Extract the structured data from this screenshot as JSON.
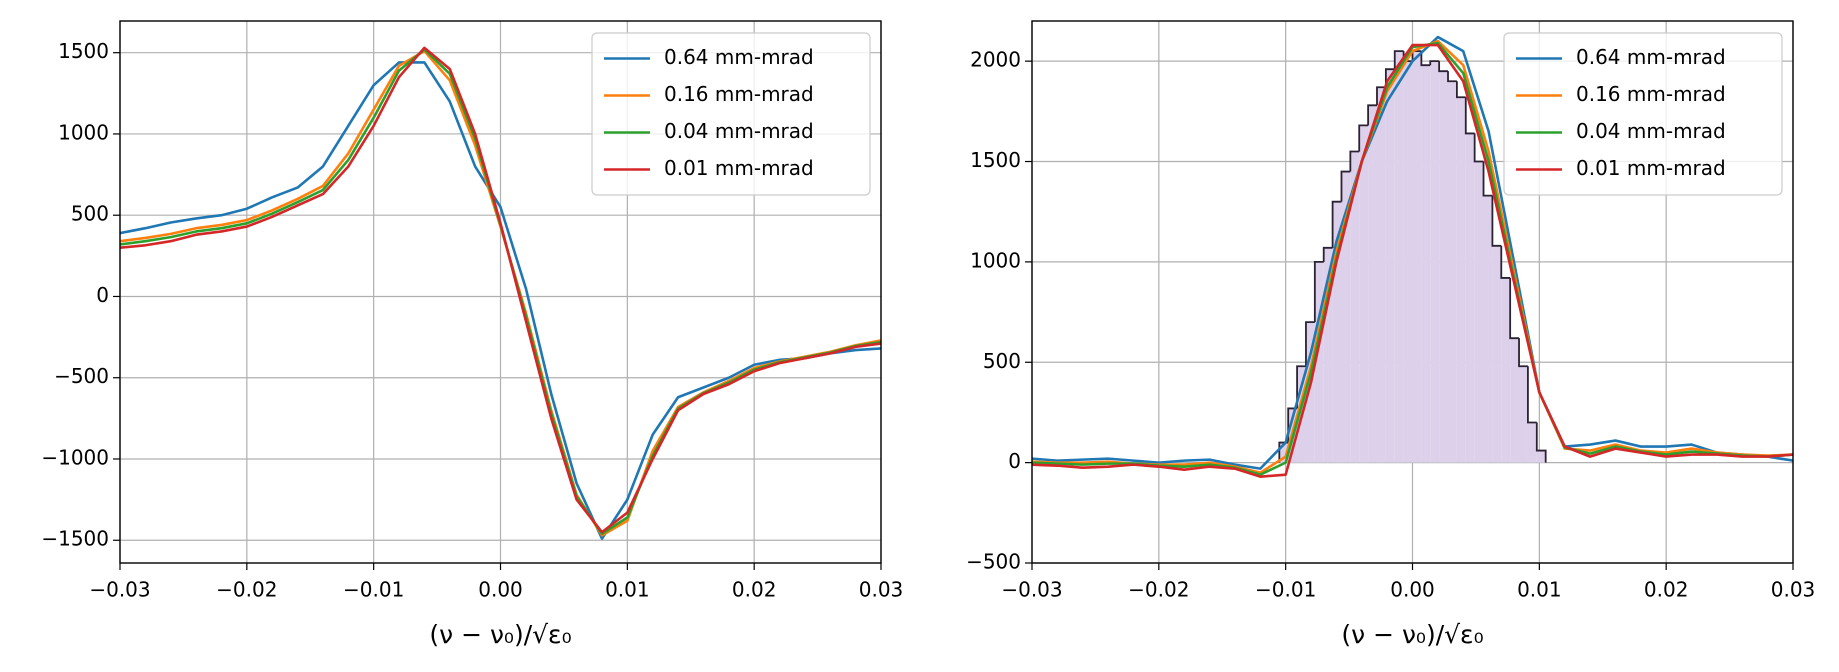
{
  "chart_data": [
    {
      "type": "line",
      "xlabel": "(ν − ν₀)/√ε₀",
      "x": [
        -0.03,
        -0.028,
        -0.026,
        -0.024,
        -0.022,
        -0.02,
        -0.018,
        -0.016,
        -0.014,
        -0.012,
        -0.01,
        -0.008,
        -0.006,
        -0.004,
        -0.002,
        0,
        0.002,
        0.004,
        0.006,
        0.008,
        0.01,
        0.012,
        0.014,
        0.016,
        0.018,
        0.02,
        0.022,
        0.024,
        0.026,
        0.028,
        0.03
      ],
      "series": [
        {
          "name": "0.64 mm-mrad",
          "color": "#1f77b4",
          "values": [
            390,
            420,
            455,
            480,
            500,
            540,
            610,
            670,
            800,
            1050,
            1300,
            1440,
            1440,
            1200,
            800,
            550,
            50,
            -600,
            -1150,
            -1490,
            -1250,
            -850,
            -620,
            -560,
            -500,
            -420,
            -390,
            -380,
            -350,
            -330,
            -320
          ]
        },
        {
          "name": "0.16 mm-mrad",
          "color": "#ff7f0e",
          "values": [
            340,
            360,
            385,
            420,
            440,
            470,
            530,
            600,
            680,
            880,
            1150,
            1420,
            1510,
            1330,
            930,
            430,
            -100,
            -700,
            -1220,
            -1470,
            -1380,
            -950,
            -680,
            -590,
            -520,
            -440,
            -400,
            -370,
            -340,
            -300,
            -270
          ]
        },
        {
          "name": "0.04 mm-mrad",
          "color": "#2ca02c",
          "values": [
            320,
            340,
            365,
            400,
            420,
            450,
            510,
            580,
            655,
            840,
            1100,
            1390,
            1520,
            1370,
            970,
            440,
            -120,
            -720,
            -1230,
            -1460,
            -1360,
            -980,
            -690,
            -595,
            -530,
            -450,
            -405,
            -375,
            -345,
            -305,
            -280
          ]
        },
        {
          "name": "0.01 mm-mrad",
          "color": "#d62728",
          "values": [
            300,
            315,
            340,
            380,
            400,
            430,
            490,
            560,
            630,
            800,
            1050,
            1350,
            1530,
            1400,
            1000,
            450,
            -150,
            -750,
            -1250,
            -1450,
            -1330,
            -1000,
            -700,
            -600,
            -540,
            -460,
            -410,
            -380,
            -350,
            -310,
            -290
          ]
        }
      ],
      "xlim": [
        -0.03,
        0.03
      ],
      "ylim": [
        -1640,
        1695
      ],
      "xticks": [
        {
          "value": -0.03,
          "label": "−0.03"
        },
        {
          "value": -0.02,
          "label": "−0.02"
        },
        {
          "value": -0.01,
          "label": "−0.01"
        },
        {
          "value": 0,
          "label": "0.00"
        },
        0.01,
        0.02,
        0.03
      ],
      "yticks": [
        {
          "value": -1500,
          "label": "−1500"
        },
        {
          "value": -1000,
          "label": "−1000"
        },
        {
          "value": -500,
          "label": "−500"
        },
        0,
        500,
        1000,
        1500
      ],
      "grid": true,
      "legend": "upper right"
    },
    {
      "type": "line",
      "xlabel": "(ν − ν₀)/√ε₀",
      "x": [
        -0.03,
        -0.028,
        -0.026,
        -0.024,
        -0.022,
        -0.02,
        -0.018,
        -0.016,
        -0.014,
        -0.012,
        -0.01,
        -0.008,
        -0.006,
        -0.004,
        -0.002,
        0,
        0.002,
        0.004,
        0.006,
        0.008,
        0.01,
        0.012,
        0.014,
        0.016,
        0.018,
        0.02,
        0.022,
        0.024,
        0.026,
        0.028,
        0.03
      ],
      "series": [
        {
          "name": "0.64 mm-mrad",
          "color": "#1f77b4",
          "values": [
            20,
            10,
            15,
            20,
            10,
            0,
            10,
            15,
            -10,
            -30,
            100,
            550,
            1100,
            1500,
            1800,
            2000,
            2120,
            2050,
            1650,
            1000,
            350,
            80,
            90,
            110,
            80,
            80,
            90,
            50,
            40,
            30,
            10
          ]
        },
        {
          "name": "0.16 mm-mrad",
          "color": "#ff7f0e",
          "values": [
            5,
            0,
            0,
            5,
            -5,
            -10,
            -10,
            0,
            -20,
            -50,
            30,
            480,
            1050,
            1500,
            1850,
            2050,
            2100,
            1980,
            1550,
            950,
            350,
            70,
            60,
            90,
            60,
            50,
            70,
            50,
            40,
            35,
            40
          ]
        },
        {
          "name": "0.04 mm-mrad",
          "color": "#2ca02c",
          "values": [
            0,
            -5,
            -10,
            -5,
            -5,
            -15,
            -20,
            -10,
            -25,
            -60,
            0,
            450,
            1020,
            1500,
            1870,
            2070,
            2090,
            1940,
            1500,
            920,
            350,
            75,
            45,
            80,
            55,
            40,
            55,
            45,
            35,
            30,
            40
          ]
        },
        {
          "name": "0.01 mm-mrad",
          "color": "#d62728",
          "values": [
            -10,
            -15,
            -25,
            -20,
            -10,
            -20,
            -35,
            -20,
            -30,
            -70,
            -60,
            400,
            1000,
            1500,
            1900,
            2080,
            2080,
            1900,
            1450,
            900,
            350,
            80,
            30,
            70,
            50,
            30,
            40,
            40,
            30,
            30,
            40
          ]
        }
      ],
      "histogram": {
        "color": "#dcd0ea",
        "edgecolor": "#2b2233",
        "bins": [
          -0.0105,
          -0.0098,
          -0.0091,
          -0.0084,
          -0.0077,
          -0.007,
          -0.0063,
          -0.0056,
          -0.0049,
          -0.0042,
          -0.0035,
          -0.0028,
          -0.0021,
          -0.0014,
          -0.0007,
          0,
          0.0007,
          0.0014,
          0.0021,
          0.0028,
          0.0035,
          0.0042,
          0.0049,
          0.0056,
          0.0063,
          0.007,
          0.0077,
          0.0084,
          0.0091,
          0.0098,
          0.0105
        ],
        "counts": [
          100,
          270,
          480,
          700,
          1000,
          1070,
          1300,
          1450,
          1550,
          1680,
          1780,
          1870,
          1960,
          2050,
          2000,
          2050,
          1980,
          2000,
          1950,
          1900,
          1820,
          1640,
          1500,
          1330,
          1080,
          920,
          620,
          480,
          200,
          60
        ]
      },
      "xlim": [
        -0.03,
        0.03
      ],
      "ylim": [
        -500,
        2200
      ],
      "xticks": [
        {
          "value": -0.03,
          "label": "−0.03"
        },
        {
          "value": -0.02,
          "label": "−0.02"
        },
        {
          "value": -0.01,
          "label": "−0.01"
        },
        {
          "value": 0,
          "label": "0.00"
        },
        0.01,
        0.02,
        0.03
      ],
      "yticks": [
        {
          "value": -500,
          "label": "−500"
        },
        0,
        500,
        1000,
        1500,
        2000
      ],
      "grid": true,
      "legend": "upper right"
    }
  ]
}
